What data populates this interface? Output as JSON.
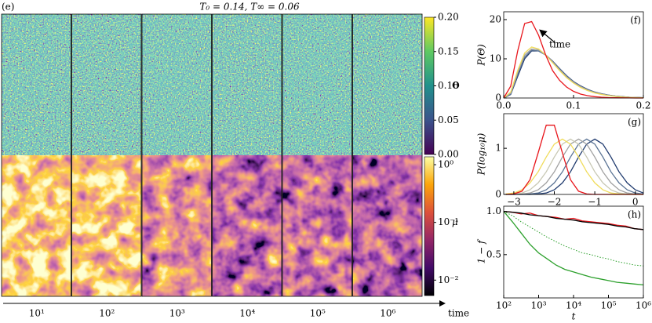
{
  "chart_data": [
    {
      "type": "heatmap",
      "label": "(e)",
      "title": "T₀ = 0.14, T∞ = 0.06",
      "categories": [
        "10¹",
        "10²",
        "10³",
        "10⁴",
        "10⁵",
        "10⁶"
      ],
      "xlabel": "time",
      "colorbars": [
        {
          "label": "Θ",
          "colormap": "viridis",
          "ylim": [
            0,
            0.2
          ],
          "yticks": [
            {
              "value": 0,
              "label": "0.00"
            },
            {
              "value": 0.05,
              "label": "0.05"
            },
            {
              "value": 0.1,
              "label": "0.10"
            },
            {
              "value": 0.15,
              "label": "0.15"
            },
            {
              "value": 0.2,
              "label": "0.20"
            }
          ]
        },
        {
          "label": "μ",
          "colormap": "inferno",
          "log": true,
          "ylim": [
            0.0054,
            1.37
          ],
          "yticks": [
            {
              "value": 1,
              "label": "10⁰"
            },
            {
              "value": 0.1,
              "label": "10⁻¹"
            },
            {
              "value": 0.01,
              "label": "10⁻²"
            }
          ]
        }
      ]
    },
    {
      "type": "line",
      "label": "(f)",
      "ylabel": "P(Θ)",
      "annotation": "time",
      "x": [
        0,
        0.01,
        0.02,
        0.03,
        0.04,
        0.05,
        0.06,
        0.07,
        0.08,
        0.09,
        0.1,
        0.11,
        0.12,
        0.13,
        0.14,
        0.15,
        0.16,
        0.17,
        0.18,
        0.19,
        0.2
      ],
      "xlim": [
        0,
        0.2
      ],
      "xticks": [
        {
          "value": 0,
          "label": "0.0"
        },
        {
          "value": 0.1,
          "label": "0.1"
        },
        {
          "value": 0.2,
          "label": "0.2"
        }
      ],
      "ylim": [
        0,
        22
      ],
      "yticks": [
        0,
        10,
        20
      ],
      "series": [
        {
          "color": "#1f3a6e",
          "values": [
            0,
            0.9,
            5.5,
            10,
            12,
            12,
            11,
            9.4,
            7.5,
            5.7,
            4.2,
            3.1,
            2.2,
            1.55,
            1.1,
            0.75,
            0.5,
            0.33,
            0.21,
            0.14,
            0.08
          ]
        },
        {
          "color": "#5a7394",
          "values": [
            0,
            1,
            6,
            10.5,
            12.2,
            12,
            11,
            9.3,
            7.4,
            5.6,
            4.1,
            3,
            2.1,
            1.5,
            1.05,
            0.72,
            0.48,
            0.32,
            0.2,
            0.13,
            0.07
          ]
        },
        {
          "color": "#a0a0a0",
          "values": [
            0,
            1.2,
            6.5,
            11,
            12.5,
            12.3,
            11,
            9.2,
            7.2,
            5.4,
            4,
            2.9,
            2,
            1.4,
            1,
            0.7,
            0.45,
            0.3,
            0.2,
            0.12,
            0.06
          ]
        },
        {
          "color": "#f0dc5a",
          "values": [
            0,
            1.5,
            7,
            11.5,
            13,
            12.5,
            11,
            9,
            7,
            5.2,
            3.8,
            2.7,
            1.9,
            1.3,
            0.9,
            0.6,
            0.4,
            0.25,
            0.15,
            0.1,
            0.05
          ]
        },
        {
          "color": "#e8151b",
          "values": [
            0,
            3,
            12,
            19,
            19.5,
            16,
            11,
            7,
            4.5,
            2.8,
            1.7,
            1,
            0.6,
            0.35,
            0.2,
            0.1,
            0.06,
            0.03,
            0.02,
            0.01,
            0
          ]
        }
      ]
    },
    {
      "type": "line",
      "label": "(g)",
      "ylabel": "P(log₁₀μ)",
      "x": [
        -3.2,
        -3,
        -2.8,
        -2.6,
        -2.4,
        -2.2,
        -2,
        -1.8,
        -1.6,
        -1.4,
        -1.2,
        -1,
        -0.8,
        -0.6,
        -0.4,
        -0.2,
        0,
        0.2
      ],
      "xlim": [
        -3.25,
        0.2
      ],
      "xticks": [
        {
          "value": -3,
          "label": "−3"
        },
        {
          "value": -2,
          "label": "−2"
        },
        {
          "value": -1,
          "label": "−1"
        },
        0
      ],
      "ylim": [
        0,
        1.75
      ],
      "yticks": [
        0,
        1
      ],
      "series": [
        {
          "color": "#1f3a6e",
          "values": [
            0,
            0,
            0,
            0,
            0.01,
            0.03,
            0.1,
            0.25,
            0.49,
            0.81,
            1.09,
            1.2,
            1.09,
            0.81,
            0.49,
            0.25,
            0.1,
            0.03
          ]
        },
        {
          "color": "#5a7394",
          "values": [
            0,
            0,
            0,
            0.01,
            0.03,
            0.1,
            0.25,
            0.49,
            0.81,
            1.09,
            1.2,
            1.09,
            0.81,
            0.49,
            0.25,
            0.1,
            0.03,
            0.01
          ]
        },
        {
          "color": "#a0a0a0",
          "values": [
            0,
            0,
            0.01,
            0.03,
            0.1,
            0.25,
            0.49,
            0.81,
            1.09,
            1.2,
            1.09,
            0.81,
            0.49,
            0.25,
            0.1,
            0.03,
            0.01,
            0
          ]
        },
        {
          "color": "#c8c8b4",
          "values": [
            0,
            0.01,
            0.03,
            0.1,
            0.25,
            0.49,
            0.81,
            1.09,
            1.2,
            1.09,
            0.81,
            0.49,
            0.25,
            0.1,
            0.03,
            0.01,
            0,
            0
          ]
        },
        {
          "color": "#f0dc5a",
          "values": [
            0.01,
            0.03,
            0.1,
            0.25,
            0.49,
            0.81,
            1.09,
            1.2,
            1.09,
            0.81,
            0.49,
            0.25,
            0.1,
            0.03,
            0.01,
            0,
            0,
            0
          ]
        },
        {
          "color": "#e8151b",
          "values": [
            0,
            0.01,
            0.07,
            0.32,
            0.9,
            1.5,
            1.5,
            0.9,
            0.32,
            0.07,
            0.01,
            0,
            0,
            0,
            0,
            0,
            0,
            0
          ]
        }
      ]
    },
    {
      "type": "line",
      "label": "(h)",
      "ylabel": "1 − f",
      "xlabel": "t",
      "xlog": true,
      "x": [
        100,
        178,
        316,
        562,
        1000,
        1778,
        3162,
        5623,
        10000,
        17783,
        31623,
        56234,
        100000,
        177828,
        316228,
        562341,
        1000000
      ],
      "xlim": [
        100,
        1000000
      ],
      "xticks": [
        {
          "value": 100,
          "label": "10²"
        },
        {
          "value": 1000,
          "label": "10³"
        },
        {
          "value": 10000,
          "label": "10⁴"
        },
        {
          "value": 100000,
          "label": "10⁵"
        },
        {
          "value": 1000000,
          "label": "10⁶"
        }
      ],
      "ylim": [
        0,
        1.06
      ],
      "yticks": [
        0.5,
        {
          "value": 1,
          "label": "1.0"
        }
      ],
      "series": [
        {
          "color": "#2ca02c",
          "values": [
            1,
            0.88,
            0.75,
            0.62,
            0.52,
            0.45,
            0.38,
            0.33,
            0.3,
            0.27,
            0.24,
            0.22,
            0.2,
            0.18,
            0.17,
            0.16,
            0.15
          ]
        },
        {
          "color": "#2ca02c",
          "style": "dotted",
          "values": [
            1,
            0.95,
            0.88,
            0.82,
            0.76,
            0.7,
            0.65,
            0.6,
            0.56,
            0.52,
            0.5,
            0.47,
            0.45,
            0.42,
            0.4,
            0.38,
            0.37
          ]
        },
        {
          "color": "#e8151b",
          "values": [
            1,
            0.99,
            0.97,
            0.98,
            0.95,
            0.94,
            0.93,
            0.91,
            0.92,
            0.89,
            0.88,
            0.87,
            0.86,
            0.84,
            0.83,
            0.8,
            0.79
          ]
        },
        {
          "color": "#000000",
          "values": [
            1,
            0.99,
            0.98,
            0.96,
            0.95,
            0.94,
            0.92,
            0.91,
            0.9,
            0.88,
            0.87,
            0.86,
            0.85,
            0.83,
            0.82,
            0.8,
            0.79
          ]
        }
      ]
    }
  ]
}
